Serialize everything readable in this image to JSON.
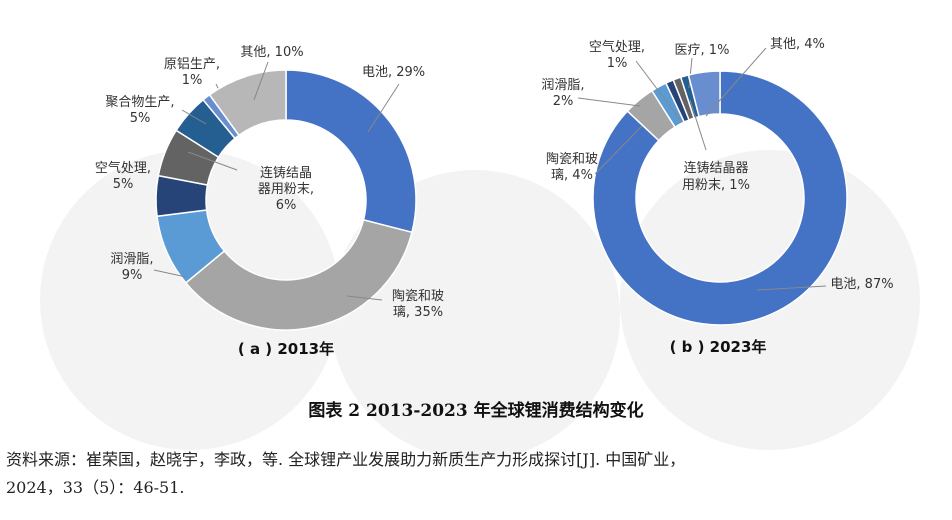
{
  "chart_data": [
    {
      "type": "pie",
      "variant": "donut",
      "title": "( a ) 2013年",
      "center_label": [
        "连铸结晶",
        "器用粉末,",
        "6%"
      ],
      "slices": [
        {
          "name": "电池",
          "value": 29,
          "color": "#4472c4",
          "label": [
            "电池, 29%"
          ]
        },
        {
          "name": "陶瓷和玻璃",
          "value": 35,
          "color": "#a5a5a5",
          "label": [
            "陶瓷和玻",
            "璃, 35%"
          ]
        },
        {
          "name": "润滑脂",
          "value": 9,
          "color": "#5b9bd5",
          "label": [
            "润滑脂,",
            "9%"
          ]
        },
        {
          "name": "空气处理",
          "value": 5,
          "color": "#264478",
          "label": [
            "空气处理,",
            "5%"
          ]
        },
        {
          "name": "连铸结晶器用粉末",
          "value": 6,
          "color": "#636363",
          "label": []
        },
        {
          "name": "聚合物生产",
          "value": 5,
          "color": "#255e91",
          "label": [
            "聚合物生产,",
            "5%"
          ]
        },
        {
          "name": "原铝生产",
          "value": 1,
          "color": "#698ed0",
          "label": [
            "原铝生产,",
            "1%"
          ]
        },
        {
          "name": "其他",
          "value": 10,
          "color": "#b7b7b7",
          "label": [
            "其他, 10%"
          ]
        }
      ]
    },
    {
      "type": "pie",
      "variant": "donut",
      "title": "( b ) 2023年",
      "center_label": [
        "连铸结晶器",
        "用粉末, 1%"
      ],
      "slices": [
        {
          "name": "电池",
          "value": 87,
          "color": "#4472c4",
          "label": [
            "电池, 87%"
          ]
        },
        {
          "name": "陶瓷和玻璃",
          "value": 4,
          "color": "#a5a5a5",
          "label": [
            "陶瓷和玻",
            "璃, 4%"
          ]
        },
        {
          "name": "润滑脂",
          "value": 2,
          "color": "#5b9bd5",
          "label": [
            "润滑脂,",
            "2%"
          ]
        },
        {
          "name": "空气处理",
          "value": 1,
          "color": "#264478",
          "label": [
            "空气处理,",
            "1%"
          ]
        },
        {
          "name": "连铸结晶器用粉末",
          "value": 1,
          "color": "#636363",
          "label": []
        },
        {
          "name": "医疗",
          "value": 1,
          "color": "#255e91",
          "label": [
            "医疗, 1%"
          ]
        },
        {
          "name": "其他",
          "value": 4,
          "color": "#698ed0",
          "label": [
            "其他, 4%"
          ]
        }
      ]
    }
  ],
  "figure_caption": "图表 2    2013-2023 年全球锂消费结构变化",
  "source_lines": [
    "资料来源：崔荣国，赵晓宇，李政，等. 全球锂产业发展助力新质生产力形成探讨[J]. 中国矿业，",
    "2024，33（5）：46-51."
  ]
}
